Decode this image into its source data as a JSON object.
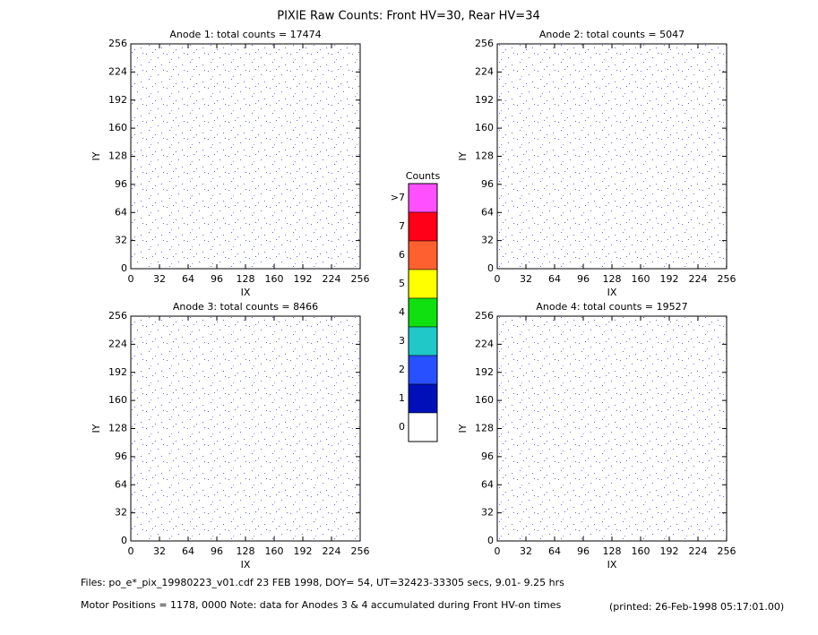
{
  "title": "PIXIE Raw Counts:  Front HV=30, Rear HV=34",
  "chart_data": [
    {
      "type": "heatmap",
      "title": "Anode 1: total counts = 17474",
      "xlabel": "IX",
      "ylabel": "IY",
      "xlim": [
        0,
        256
      ],
      "ylim": [
        0,
        256
      ],
      "xticks": [
        0,
        32,
        64,
        96,
        128,
        160,
        192,
        224,
        256
      ],
      "yticks": [
        0,
        32,
        64,
        96,
        128,
        160,
        192,
        224,
        256
      ]
    },
    {
      "type": "heatmap",
      "title": "Anode 2: total counts = 5047",
      "xlabel": "IX",
      "ylabel": "IY",
      "xlim": [
        0,
        256
      ],
      "ylim": [
        0,
        256
      ],
      "xticks": [
        0,
        32,
        64,
        96,
        128,
        160,
        192,
        224,
        256
      ],
      "yticks": [
        0,
        32,
        64,
        96,
        128,
        160,
        192,
        224,
        256
      ]
    },
    {
      "type": "heatmap",
      "title": "Anode 3: total counts = 8466",
      "xlabel": "IX",
      "ylabel": "IY",
      "xlim": [
        0,
        256
      ],
      "ylim": [
        0,
        256
      ],
      "xticks": [
        0,
        32,
        64,
        96,
        128,
        160,
        192,
        224,
        256
      ],
      "yticks": [
        0,
        32,
        64,
        96,
        128,
        160,
        192,
        224,
        256
      ]
    },
    {
      "type": "heatmap",
      "title": "Anode 4: total counts = 19527",
      "xlabel": "IX",
      "ylabel": "IY",
      "xlim": [
        0,
        256
      ],
      "ylim": [
        0,
        256
      ],
      "xticks": [
        0,
        32,
        64,
        96,
        128,
        160,
        192,
        224,
        256
      ],
      "yticks": [
        0,
        32,
        64,
        96,
        128,
        160,
        192,
        224,
        256
      ]
    }
  ],
  "colorbar": {
    "title": "Counts",
    "ticks": [
      {
        "value": 8,
        "label": ">7"
      },
      7,
      6,
      5,
      4,
      3,
      2,
      1,
      0
    ],
    "colors": [
      "#ff50ff",
      "#ff0018",
      "#ff6030",
      "#ffff00",
      "#10e010",
      "#20c8c8",
      "#2850ff",
      "#0010b8",
      "#ffffff"
    ]
  },
  "footer": [
    "Files: po_e*_pix_19980223_v01.cdf    23 FEB 1998, DOY= 54, UT=32423-33305 secs,  9.01- 9.25 hrs",
    "Motor Positions = 1178, 0000   Note: data for Anodes 3 & 4 accumulated during Front HV-on times",
    "(printed: 26-Feb-1998 05:17:01.00)"
  ]
}
